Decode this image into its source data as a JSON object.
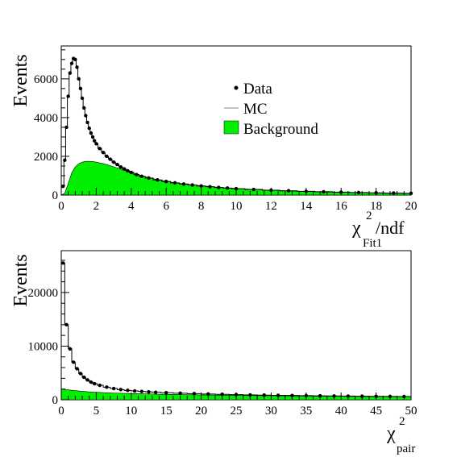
{
  "chart_data": [
    {
      "type": "histogram",
      "ylabel": "Events",
      "xlabel_main": "χ",
      "xlabel_sup": "2",
      "xlabel_suffix": "/ndf",
      "xlabel_sub": "Fit1",
      "xlim": [
        0,
        20
      ],
      "ylim": [
        0,
        7700
      ],
      "x_ticks": [
        0,
        2,
        4,
        6,
        8,
        10,
        12,
        14,
        16,
        18,
        20
      ],
      "y_ticks": [
        0,
        2000,
        4000,
        6000
      ],
      "legend": {
        "position": "top-right",
        "entries": [
          {
            "label": "Data",
            "kind": "marker"
          },
          {
            "label": "MC",
            "kind": "line"
          },
          {
            "label": "Background",
            "kind": "fill"
          }
        ]
      },
      "colors": {
        "background": "#00ee00",
        "data": "#000000",
        "mc": "#000000"
      },
      "data_points": [
        [
          0.1,
          450
        ],
        [
          0.2,
          1800
        ],
        [
          0.3,
          3500
        ],
        [
          0.4,
          5100
        ],
        [
          0.5,
          6300
        ],
        [
          0.6,
          6800
        ],
        [
          0.7,
          7050
        ],
        [
          0.8,
          7000
        ],
        [
          0.9,
          6600
        ],
        [
          1.0,
          6000
        ],
        [
          1.1,
          5500
        ],
        [
          1.2,
          5000
        ],
        [
          1.3,
          4500
        ],
        [
          1.4,
          4100
        ],
        [
          1.5,
          3750
        ],
        [
          1.6,
          3450
        ],
        [
          1.7,
          3200
        ],
        [
          1.8,
          3000
        ],
        [
          1.9,
          2800
        ],
        [
          2.0,
          2650
        ],
        [
          2.2,
          2400
        ],
        [
          2.4,
          2200
        ],
        [
          2.6,
          2000
        ],
        [
          2.8,
          1850
        ],
        [
          3.0,
          1700
        ],
        [
          3.2,
          1580
        ],
        [
          3.4,
          1450
        ],
        [
          3.6,
          1350
        ],
        [
          3.8,
          1250
        ],
        [
          4.0,
          1170
        ],
        [
          4.3,
          1060
        ],
        [
          4.6,
          970
        ],
        [
          5.0,
          880
        ],
        [
          5.5,
          780
        ],
        [
          6.0,
          700
        ],
        [
          6.5,
          630
        ],
        [
          7.0,
          570
        ],
        [
          7.5,
          520
        ],
        [
          8.0,
          470
        ],
        [
          8.5,
          430
        ],
        [
          9.0,
          390
        ],
        [
          9.5,
          360
        ],
        [
          10.0,
          330
        ],
        [
          11.0,
          290
        ],
        [
          12.0,
          250
        ],
        [
          13.0,
          220
        ],
        [
          14.0,
          190
        ],
        [
          15.0,
          170
        ],
        [
          16.0,
          150
        ],
        [
          17.0,
          130
        ],
        [
          18.0,
          115
        ],
        [
          19.0,
          100
        ],
        [
          20.0,
          90
        ]
      ],
      "background_points": [
        [
          0.0,
          0
        ],
        [
          0.2,
          100
        ],
        [
          0.4,
          600
        ],
        [
          0.6,
          1150
        ],
        [
          0.8,
          1450
        ],
        [
          1.0,
          1620
        ],
        [
          1.2,
          1700
        ],
        [
          1.4,
          1740
        ],
        [
          1.6,
          1740
        ],
        [
          1.8,
          1730
        ],
        [
          2.0,
          1700
        ],
        [
          2.4,
          1620
        ],
        [
          2.8,
          1520
        ],
        [
          3.2,
          1400
        ],
        [
          3.6,
          1280
        ],
        [
          4.0,
          1160
        ],
        [
          4.5,
          1020
        ],
        [
          5.0,
          900
        ],
        [
          5.5,
          800
        ],
        [
          6.0,
          710
        ],
        [
          6.5,
          640
        ],
        [
          7.0,
          580
        ],
        [
          8.0,
          480
        ],
        [
          9.0,
          400
        ],
        [
          10.0,
          340
        ],
        [
          11.0,
          290
        ],
        [
          12.0,
          250
        ],
        [
          13.0,
          215
        ],
        [
          14.0,
          185
        ],
        [
          15.0,
          160
        ],
        [
          16.0,
          140
        ],
        [
          17.0,
          125
        ],
        [
          18.0,
          110
        ],
        [
          19.0,
          100
        ],
        [
          20.0,
          90
        ]
      ]
    },
    {
      "type": "histogram",
      "ylabel": "Events",
      "xlabel_main": "χ",
      "xlabel_sup": "2",
      "xlabel_suffix": "",
      "xlabel_sub": "pair",
      "xlim": [
        0,
        50
      ],
      "ylim": [
        0,
        27800
      ],
      "x_ticks": [
        0,
        5,
        10,
        15,
        20,
        25,
        30,
        35,
        40,
        45,
        50
      ],
      "y_ticks": [
        0,
        10000,
        20000
      ],
      "colors": {
        "background": "#00ee00",
        "data": "#000000",
        "mc": "#000000"
      },
      "data_points": [
        [
          0.25,
          25500
        ],
        [
          0.75,
          14000
        ],
        [
          1.25,
          9500
        ],
        [
          1.75,
          7000
        ],
        [
          2.25,
          5800
        ],
        [
          2.75,
          4900
        ],
        [
          3.25,
          4200
        ],
        [
          3.75,
          3700
        ],
        [
          4.25,
          3300
        ],
        [
          4.75,
          3000
        ],
        [
          5.5,
          2700
        ],
        [
          6.5,
          2350
        ],
        [
          7.5,
          2100
        ],
        [
          8.5,
          1900
        ],
        [
          9.5,
          1750
        ],
        [
          10.5,
          1650
        ],
        [
          11.5,
          1550
        ],
        [
          12.5,
          1480
        ],
        [
          13.5,
          1400
        ],
        [
          15,
          1320
        ],
        [
          17,
          1230
        ],
        [
          19,
          1150
        ],
        [
          21,
          1080
        ],
        [
          23,
          1020
        ],
        [
          25,
          960
        ],
        [
          27,
          910
        ],
        [
          29,
          870
        ],
        [
          31,
          830
        ],
        [
          33,
          800
        ],
        [
          35,
          770
        ],
        [
          37,
          740
        ],
        [
          39,
          710
        ],
        [
          41,
          690
        ],
        [
          43,
          660
        ],
        [
          45,
          640
        ],
        [
          47,
          620
        ],
        [
          49,
          600
        ]
      ],
      "background_points": [
        [
          0,
          2000
        ],
        [
          1,
          1850
        ],
        [
          2,
          1700
        ],
        [
          3,
          1580
        ],
        [
          4,
          1480
        ],
        [
          5,
          1400
        ],
        [
          6,
          1330
        ],
        [
          8,
          1240
        ],
        [
          10,
          1160
        ],
        [
          12,
          1100
        ],
        [
          15,
          1020
        ],
        [
          18,
          950
        ],
        [
          21,
          890
        ],
        [
          24,
          840
        ],
        [
          27,
          800
        ],
        [
          30,
          760
        ],
        [
          33,
          720
        ],
        [
          36,
          690
        ],
        [
          39,
          660
        ],
        [
          42,
          630
        ],
        [
          45,
          610
        ],
        [
          48,
          590
        ],
        [
          50,
          580
        ]
      ]
    }
  ]
}
